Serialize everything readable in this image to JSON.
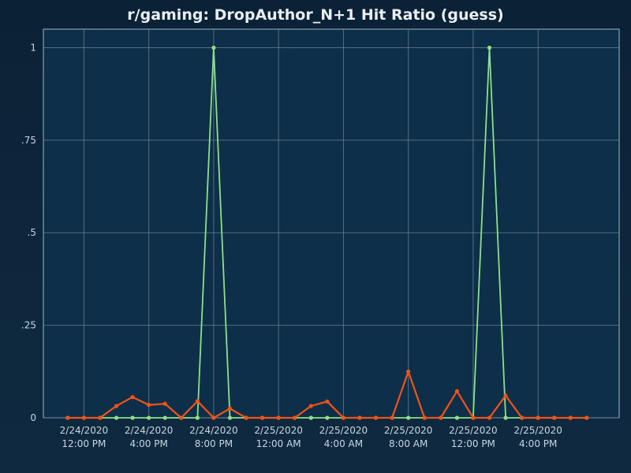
{
  "chart_data": {
    "type": "line",
    "title": "r/gaming: DropAuthor_N+1 Hit Ratio (guess)",
    "xlabel": "",
    "ylabel": "",
    "ylim": [
      0,
      1.05
    ],
    "yticks": [
      {
        "value": 0,
        "label": "0"
      },
      {
        "value": 0.25,
        "label": ".25"
      },
      {
        "value": 0.5,
        "label": ".5"
      },
      {
        "value": 0.75,
        "label": ".75"
      },
      {
        "value": 1,
        "label": "1"
      }
    ],
    "xlim": [
      "2/24/2020 9:30 AM",
      "2/25/2020 9:00 PM"
    ],
    "xticks": [
      {
        "value": "2/24/2020 12:00 PM",
        "line1": "2/24/2020",
        "line2": "12:00 PM"
      },
      {
        "value": "2/24/2020 4:00 PM",
        "line1": "2/24/2020",
        "line2": "4:00 PM"
      },
      {
        "value": "2/24/2020 8:00 PM",
        "line1": "2/24/2020",
        "line2": "8:00 PM"
      },
      {
        "value": "2/25/2020 12:00 AM",
        "line1": "2/25/2020",
        "line2": "12:00 AM"
      },
      {
        "value": "2/25/2020 4:00 AM",
        "line1": "2/25/2020",
        "line2": "4:00 AM"
      },
      {
        "value": "2/25/2020 8:00 AM",
        "line1": "2/25/2020",
        "line2": "8:00 AM"
      },
      {
        "value": "2/25/2020 12:00 PM",
        "line1": "2/25/2020",
        "line2": "12:00 PM"
      },
      {
        "value": "2/25/2020 4:00 PM",
        "line1": "2/25/2020",
        "line2": "4:00 PM"
      }
    ],
    "grid": true,
    "x": [
      "2/24/2020 11:00 AM",
      "2/24/2020 12:00 PM",
      "2/24/2020 1:00 PM",
      "2/24/2020 2:00 PM",
      "2/24/2020 3:00 PM",
      "2/24/2020 4:00 PM",
      "2/24/2020 5:00 PM",
      "2/24/2020 6:00 PM",
      "2/24/2020 7:00 PM",
      "2/24/2020 8:00 PM",
      "2/24/2020 9:00 PM",
      "2/24/2020 10:00 PM",
      "2/24/2020 11:00 PM",
      "2/25/2020 12:00 AM",
      "2/25/2020 1:00 AM",
      "2/25/2020 2:00 AM",
      "2/25/2020 3:00 AM",
      "2/25/2020 4:00 AM",
      "2/25/2020 5:00 AM",
      "2/25/2020 6:00 AM",
      "2/25/2020 7:00 AM",
      "2/25/2020 8:00 AM",
      "2/25/2020 9:00 AM",
      "2/25/2020 10:00 AM",
      "2/25/2020 11:00 AM",
      "2/25/2020 12:00 PM",
      "2/25/2020 1:00 PM",
      "2/25/2020 2:00 PM",
      "2/25/2020 3:00 PM",
      "2/25/2020 4:00 PM",
      "2/25/2020 5:00 PM",
      "2/25/2020 6:00 PM",
      "2/25/2020 7:00 PM"
    ],
    "series": [
      {
        "color": "#8ee088",
        "values": [
          0,
          0,
          0,
          0,
          0,
          0,
          0,
          0,
          0,
          1,
          0,
          0,
          0,
          0,
          0,
          0,
          0,
          0,
          0,
          0,
          0,
          0,
          0,
          0,
          0,
          0,
          1,
          0,
          0,
          0,
          0,
          0,
          0
        ]
      },
      {
        "color": "#f25418",
        "values": [
          0,
          0,
          0,
          0.032,
          0.056,
          0.035,
          0.038,
          0,
          0.045,
          0,
          0.025,
          0,
          0,
          0,
          0,
          0.032,
          0.044,
          0,
          0,
          0,
          0,
          0.125,
          0,
          0,
          0.072,
          0,
          0,
          0.06,
          0,
          0,
          0,
          0,
          0
        ]
      }
    ]
  }
}
